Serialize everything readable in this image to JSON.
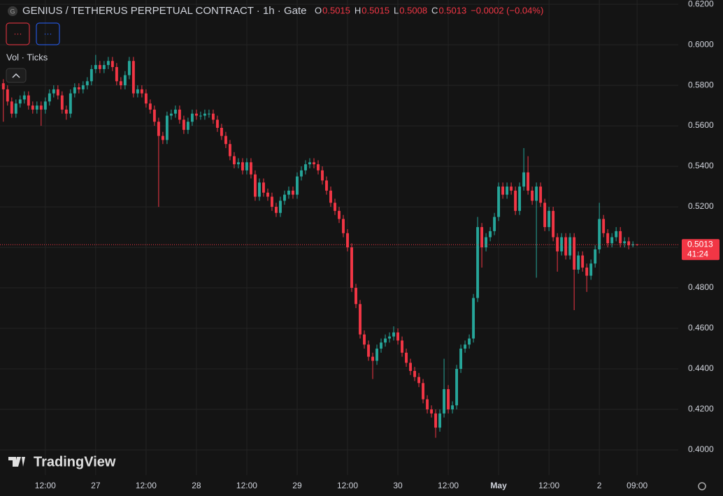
{
  "chart_data": {
    "type": "candlestick",
    "title": "GENIUS / TETHERUS PERPETUAL CONTRACT · 1h · Gate",
    "ohlc_labels": [
      "O",
      "H",
      "L",
      "C"
    ],
    "change": "−0.0002 (−0.04%)",
    "indicator": "Vol · Ticks",
    "buttons": [
      "···",
      "···"
    ],
    "countdown": "41:24",
    "brand": "TradingView",
    "up_color": "#26a69a",
    "down_color": "#f23645",
    "grid": true,
    "ylim": [
      0.3876,
      0.6221
    ],
    "yticks": [
      {
        "value": 0.4,
        "label": "0.4000"
      },
      {
        "value": 0.42,
        "label": "0.4200"
      },
      {
        "value": 0.44,
        "label": "0.4400"
      },
      {
        "value": 0.46,
        "label": "0.4600"
      },
      {
        "value": 0.48,
        "label": "0.4800"
      },
      {
        "value": 0.5,
        "label": "0.5000"
      },
      {
        "value": 0.52,
        "label": "0.5200"
      },
      {
        "value": 0.54,
        "label": "0.5400"
      },
      {
        "value": 0.56,
        "label": "0.5600"
      },
      {
        "value": 0.58,
        "label": "0.5800"
      },
      {
        "value": 0.6,
        "label": "0.6000"
      },
      {
        "value": 0.62,
        "label": "0.6200"
      }
    ],
    "xlim": [
      -0.8,
      160.8
    ],
    "xticks": [
      {
        "value": 10,
        "label": "12:00"
      },
      {
        "value": 22,
        "label": "27"
      },
      {
        "value": 34,
        "label": "12:00"
      },
      {
        "value": 46,
        "label": "28"
      },
      {
        "value": 58,
        "label": "12:00"
      },
      {
        "value": 70,
        "label": "29"
      },
      {
        "value": 82,
        "label": "12:00"
      },
      {
        "value": 94,
        "label": "30"
      },
      {
        "value": 106,
        "label": "12:00"
      },
      {
        "value": 118,
        "label": "May"
      },
      {
        "value": 130,
        "label": "12:00"
      },
      {
        "value": 142,
        "label": "2"
      },
      {
        "value": 151,
        "label": "09:00"
      }
    ],
    "ohlc": [
      [
        0.581,
        0.583,
        0.562,
        0.578
      ],
      [
        0.578,
        0.58,
        0.57,
        0.572
      ],
      [
        0.572,
        0.574,
        0.564,
        0.566
      ],
      [
        0.566,
        0.573,
        0.564,
        0.571
      ],
      [
        0.571,
        0.575,
        0.569,
        0.573
      ],
      [
        0.573,
        0.577,
        0.571,
        0.575
      ],
      [
        0.575,
        0.577,
        0.568,
        0.57
      ],
      [
        0.57,
        0.572,
        0.566,
        0.568
      ],
      [
        0.568,
        0.572,
        0.566,
        0.57
      ],
      [
        0.57,
        0.572,
        0.56,
        0.568
      ],
      [
        0.568,
        0.574,
        0.566,
        0.572
      ],
      [
        0.572,
        0.578,
        0.57,
        0.576
      ],
      [
        0.576,
        0.58,
        0.574,
        0.578
      ],
      [
        0.578,
        0.58,
        0.573,
        0.575
      ],
      [
        0.575,
        0.577,
        0.566,
        0.568
      ],
      [
        0.568,
        0.57,
        0.563,
        0.566
      ],
      [
        0.566,
        0.578,
        0.564,
        0.576
      ],
      [
        0.576,
        0.581,
        0.574,
        0.579
      ],
      [
        0.579,
        0.581,
        0.576,
        0.578
      ],
      [
        0.578,
        0.582,
        0.576,
        0.58
      ],
      [
        0.58,
        0.584,
        0.578,
        0.582
      ],
      [
        0.582,
        0.59,
        0.58,
        0.588
      ],
      [
        0.588,
        0.595,
        0.586,
        0.59
      ],
      [
        0.59,
        0.592,
        0.586,
        0.588
      ],
      [
        0.588,
        0.592,
        0.586,
        0.59
      ],
      [
        0.59,
        0.594,
        0.588,
        0.592
      ],
      [
        0.592,
        0.594,
        0.587,
        0.589
      ],
      [
        0.589,
        0.591,
        0.58,
        0.582
      ],
      [
        0.582,
        0.584,
        0.578,
        0.58
      ],
      [
        0.58,
        0.587,
        0.578,
        0.585
      ],
      [
        0.585,
        0.594,
        0.583,
        0.592
      ],
      [
        0.592,
        0.594,
        0.574,
        0.576
      ],
      [
        0.576,
        0.58,
        0.574,
        0.578
      ],
      [
        0.578,
        0.58,
        0.574,
        0.576
      ],
      [
        0.576,
        0.578,
        0.569,
        0.571
      ],
      [
        0.571,
        0.573,
        0.566,
        0.568
      ],
      [
        0.568,
        0.57,
        0.56,
        0.562
      ],
      [
        0.562,
        0.564,
        0.52,
        0.555
      ],
      [
        0.555,
        0.557,
        0.551,
        0.553
      ],
      [
        0.553,
        0.567,
        0.551,
        0.565
      ],
      [
        0.565,
        0.568,
        0.563,
        0.566
      ],
      [
        0.566,
        0.57,
        0.564,
        0.568
      ],
      [
        0.568,
        0.57,
        0.561,
        0.563
      ],
      [
        0.563,
        0.565,
        0.556,
        0.558
      ],
      [
        0.558,
        0.564,
        0.556,
        0.562
      ],
      [
        0.562,
        0.568,
        0.56,
        0.566
      ],
      [
        0.566,
        0.568,
        0.563,
        0.565
      ],
      [
        0.565,
        0.567,
        0.563,
        0.565
      ],
      [
        0.565,
        0.568,
        0.563,
        0.566
      ],
      [
        0.566,
        0.568,
        0.564,
        0.566
      ],
      [
        0.566,
        0.568,
        0.561,
        0.563
      ],
      [
        0.563,
        0.565,
        0.557,
        0.559
      ],
      [
        0.559,
        0.561,
        0.553,
        0.555
      ],
      [
        0.555,
        0.557,
        0.549,
        0.551
      ],
      [
        0.551,
        0.553,
        0.543,
        0.545
      ],
      [
        0.545,
        0.547,
        0.539,
        0.541
      ],
      [
        0.541,
        0.544,
        0.539,
        0.542
      ],
      [
        0.542,
        0.544,
        0.536,
        0.538
      ],
      [
        0.538,
        0.544,
        0.536,
        0.542
      ],
      [
        0.542,
        0.544,
        0.534,
        0.536
      ],
      [
        0.536,
        0.538,
        0.523,
        0.525
      ],
      [
        0.525,
        0.534,
        0.523,
        0.532
      ],
      [
        0.532,
        0.534,
        0.525,
        0.527
      ],
      [
        0.527,
        0.529,
        0.523,
        0.525
      ],
      [
        0.525,
        0.527,
        0.518,
        0.52
      ],
      [
        0.52,
        0.522,
        0.515,
        0.517
      ],
      [
        0.517,
        0.525,
        0.515,
        0.523
      ],
      [
        0.523,
        0.528,
        0.521,
        0.526
      ],
      [
        0.526,
        0.53,
        0.524,
        0.528
      ],
      [
        0.528,
        0.53,
        0.524,
        0.526
      ],
      [
        0.526,
        0.537,
        0.524,
        0.535
      ],
      [
        0.535,
        0.54,
        0.533,
        0.538
      ],
      [
        0.538,
        0.543,
        0.536,
        0.541
      ],
      [
        0.541,
        0.544,
        0.539,
        0.542
      ],
      [
        0.542,
        0.544,
        0.539,
        0.541
      ],
      [
        0.541,
        0.543,
        0.536,
        0.538
      ],
      [
        0.538,
        0.54,
        0.531,
        0.533
      ],
      [
        0.533,
        0.535,
        0.526,
        0.528
      ],
      [
        0.528,
        0.53,
        0.52,
        0.522
      ],
      [
        0.522,
        0.524,
        0.516,
        0.518
      ],
      [
        0.518,
        0.52,
        0.512,
        0.514
      ],
      [
        0.514,
        0.516,
        0.505,
        0.507
      ],
      [
        0.507,
        0.509,
        0.498,
        0.5
      ],
      [
        0.5,
        0.502,
        0.478,
        0.48
      ],
      [
        0.48,
        0.482,
        0.47,
        0.472
      ],
      [
        0.472,
        0.474,
        0.455,
        0.457
      ],
      [
        0.457,
        0.459,
        0.45,
        0.452
      ],
      [
        0.452,
        0.454,
        0.444,
        0.446
      ],
      [
        0.446,
        0.448,
        0.435,
        0.444
      ],
      [
        0.444,
        0.452,
        0.442,
        0.45
      ],
      [
        0.45,
        0.455,
        0.448,
        0.453
      ],
      [
        0.453,
        0.457,
        0.451,
        0.455
      ],
      [
        0.455,
        0.458,
        0.453,
        0.456
      ],
      [
        0.456,
        0.461,
        0.454,
        0.458
      ],
      [
        0.458,
        0.46,
        0.452,
        0.454
      ],
      [
        0.454,
        0.456,
        0.446,
        0.448
      ],
      [
        0.448,
        0.45,
        0.441,
        0.443
      ],
      [
        0.443,
        0.445,
        0.437,
        0.439
      ],
      [
        0.439,
        0.441,
        0.434,
        0.436
      ],
      [
        0.436,
        0.438,
        0.431,
        0.433
      ],
      [
        0.433,
        0.435,
        0.423,
        0.425
      ],
      [
        0.425,
        0.427,
        0.418,
        0.42
      ],
      [
        0.42,
        0.422,
        0.416,
        0.418
      ],
      [
        0.418,
        0.42,
        0.406,
        0.411
      ],
      [
        0.411,
        0.42,
        0.409,
        0.418
      ],
      [
        0.418,
        0.445,
        0.416,
        0.43
      ],
      [
        0.43,
        0.432,
        0.418,
        0.42
      ],
      [
        0.42,
        0.424,
        0.418,
        0.422
      ],
      [
        0.422,
        0.442,
        0.42,
        0.44
      ],
      [
        0.44,
        0.452,
        0.438,
        0.45
      ],
      [
        0.45,
        0.454,
        0.448,
        0.452
      ],
      [
        0.452,
        0.457,
        0.45,
        0.455
      ],
      [
        0.455,
        0.477,
        0.453,
        0.475
      ],
      [
        0.475,
        0.515,
        0.473,
        0.51
      ],
      [
        0.51,
        0.512,
        0.49,
        0.5
      ],
      [
        0.5,
        0.507,
        0.498,
        0.505
      ],
      [
        0.505,
        0.51,
        0.503,
        0.508
      ],
      [
        0.508,
        0.517,
        0.506,
        0.515
      ],
      [
        0.515,
        0.532,
        0.513,
        0.53
      ],
      [
        0.53,
        0.532,
        0.524,
        0.526
      ],
      [
        0.526,
        0.532,
        0.524,
        0.53
      ],
      [
        0.53,
        0.532,
        0.526,
        0.528
      ],
      [
        0.528,
        0.53,
        0.516,
        0.518
      ],
      [
        0.518,
        0.532,
        0.516,
        0.53
      ],
      [
        0.53,
        0.549,
        0.528,
        0.537
      ],
      [
        0.537,
        0.545,
        0.526,
        0.528
      ],
      [
        0.528,
        0.53,
        0.521,
        0.523
      ],
      [
        0.523,
        0.532,
        0.485,
        0.53
      ],
      [
        0.53,
        0.532,
        0.52,
        0.522
      ],
      [
        0.522,
        0.524,
        0.508,
        0.51
      ],
      [
        0.51,
        0.52,
        0.508,
        0.518
      ],
      [
        0.518,
        0.52,
        0.503,
        0.505
      ],
      [
        0.505,
        0.507,
        0.488,
        0.498
      ],
      [
        0.498,
        0.507,
        0.496,
        0.505
      ],
      [
        0.505,
        0.507,
        0.494,
        0.496
      ],
      [
        0.496,
        0.507,
        0.494,
        0.505
      ],
      [
        0.505,
        0.507,
        0.469,
        0.489
      ],
      [
        0.489,
        0.498,
        0.487,
        0.496
      ],
      [
        0.496,
        0.498,
        0.488,
        0.49
      ],
      [
        0.49,
        0.492,
        0.478,
        0.486
      ],
      [
        0.486,
        0.494,
        0.484,
        0.492
      ],
      [
        0.492,
        0.501,
        0.49,
        0.499
      ],
      [
        0.499,
        0.522,
        0.497,
        0.514
      ],
      [
        0.514,
        0.516,
        0.505,
        0.507
      ],
      [
        0.507,
        0.509,
        0.5,
        0.502
      ],
      [
        0.502,
        0.507,
        0.5,
        0.505
      ],
      [
        0.505,
        0.51,
        0.503,
        0.508
      ],
      [
        0.508,
        0.51,
        0.5,
        0.502
      ],
      [
        0.502,
        0.505,
        0.5,
        0.503
      ],
      [
        0.503,
        0.505,
        0.499,
        0.501
      ],
      [
        0.501,
        0.503,
        0.5,
        0.5015
      ],
      [
        0.5015,
        0.5015,
        0.5008,
        0.5013
      ]
    ]
  }
}
